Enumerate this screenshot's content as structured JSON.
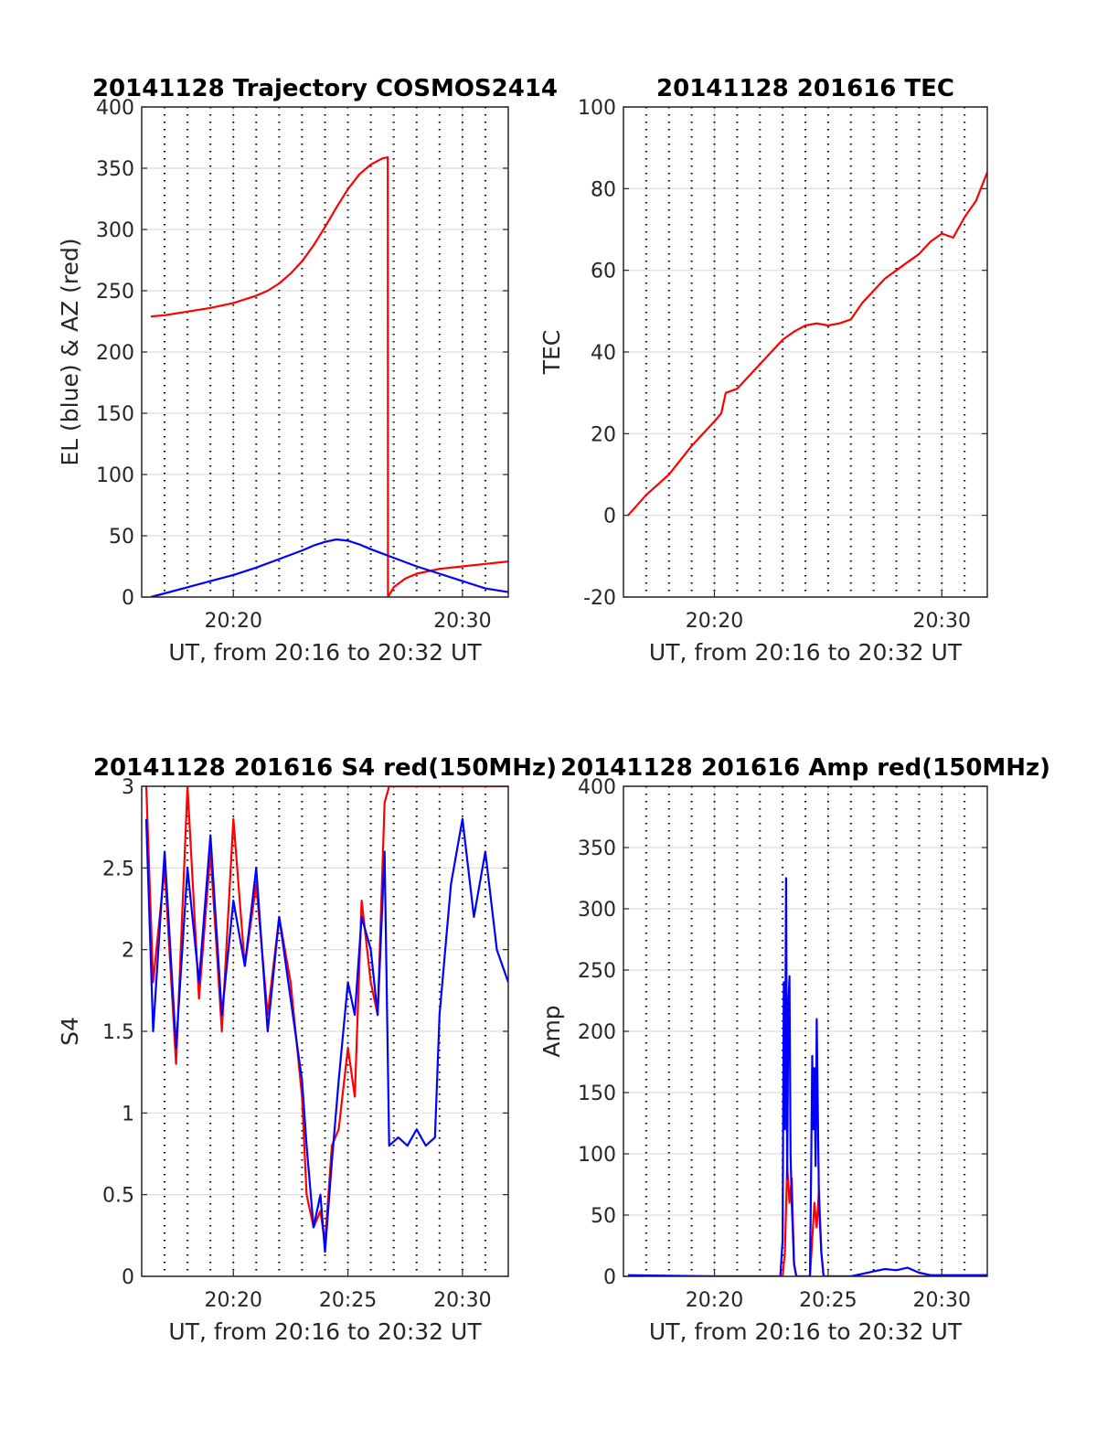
{
  "chart_data": [
    {
      "type": "line",
      "title": "20141128 Trajectory COSMOS2414",
      "xlabel": "UT, from 20:16 to 20:32 UT",
      "ylabel": "EL (blue) & AZ (red)",
      "xlim": [
        16,
        32
      ],
      "ylim": [
        0,
        400
      ],
      "xticks": [
        20,
        30
      ],
      "xtick_labels": [
        "20:20",
        "20:30"
      ],
      "yticks": [
        0,
        50,
        100,
        150,
        200,
        250,
        300,
        350,
        400
      ],
      "ytick_labels": [
        "0",
        "50",
        "100",
        "150",
        "200",
        "250",
        "300",
        "350",
        "400"
      ],
      "grid": true,
      "series": [
        {
          "color": "#ff0000",
          "x": [
            16.4,
            17,
            18,
            19,
            20,
            21,
            21.5,
            22,
            22.5,
            23,
            23.5,
            24,
            24.5,
            25,
            25.5,
            26,
            26.5,
            26.74,
            26.75,
            27,
            27.5,
            28,
            29,
            30,
            31,
            32
          ],
          "y": [
            229,
            230,
            233,
            236,
            240,
            246,
            250,
            256,
            264,
            274,
            287,
            302,
            318,
            333,
            345,
            353,
            358,
            359,
            0,
            8,
            15,
            19,
            23,
            25,
            27,
            29
          ]
        },
        {
          "color": "#0000ff",
          "x": [
            16.4,
            17,
            18,
            19,
            20,
            21,
            22,
            23,
            23.5,
            24,
            24.5,
            25,
            25.5,
            26,
            27,
            28,
            29,
            30,
            31,
            32
          ],
          "y": [
            0,
            3,
            8,
            13,
            18,
            24,
            31,
            38,
            42,
            45,
            47,
            46,
            43,
            39,
            32,
            25,
            19,
            13,
            7,
            4
          ]
        }
      ]
    },
    {
      "type": "line",
      "title": "20141128 201616 TEC",
      "xlabel": "UT, from 20:16 to 20:32 UT",
      "ylabel": "TEC",
      "xlim": [
        16,
        32
      ],
      "ylim": [
        -20,
        100
      ],
      "xticks": [
        20,
        30
      ],
      "xtick_labels": [
        "20:20",
        "20:30"
      ],
      "yticks": [
        -20,
        0,
        20,
        40,
        60,
        80,
        100
      ],
      "ytick_labels": [
        "-20",
        "0",
        "20",
        "40",
        "60",
        "80",
        "100"
      ],
      "grid": true,
      "series": [
        {
          "color": "#ff0000",
          "x": [
            16.2,
            17,
            18,
            19,
            20,
            20.3,
            20.5,
            21,
            21.5,
            22,
            22.5,
            23,
            23.5,
            24,
            24.5,
            25,
            25.5,
            26,
            26.5,
            27,
            27.5,
            28,
            28.5,
            29,
            29.5,
            30,
            30.5,
            31,
            31.5,
            32
          ],
          "y": [
            0,
            5,
            10,
            17,
            23,
            25,
            30,
            31,
            34,
            37,
            40,
            43,
            45,
            46.5,
            47,
            46.5,
            47,
            48,
            52,
            55,
            58,
            60,
            62,
            64,
            67,
            69,
            68,
            73,
            77,
            84
          ]
        }
      ]
    },
    {
      "type": "line",
      "title": "20141128 201616 S4 red(150MHz)",
      "xlabel": "UT, from 20:16 to 20:32 UT",
      "ylabel": "S4",
      "xlim": [
        16,
        32
      ],
      "ylim": [
        0,
        3
      ],
      "xticks": [
        20,
        25,
        30
      ],
      "xtick_labels": [
        "20:20",
        "20:25",
        "20:30"
      ],
      "yticks": [
        0,
        0.5,
        1,
        1.5,
        2,
        2.5,
        3
      ],
      "ytick_labels": [
        "0",
        "0.5",
        "1",
        "1.5",
        "2",
        "2.5",
        "3"
      ],
      "grid": true,
      "series": [
        {
          "color": "#ff0000",
          "x": [
            16.2,
            16.5,
            17,
            17.5,
            18,
            18.5,
            19,
            19.5,
            20,
            20.5,
            21,
            21.5,
            22,
            22.5,
            23,
            23.2,
            23.5,
            23.8,
            24,
            24.3,
            24.6,
            25,
            25.3,
            25.6,
            26,
            26.3,
            26.6,
            26.8,
            27.5,
            28,
            28.5,
            29,
            29.5,
            30,
            30.5,
            31,
            31.5,
            32
          ],
          "y": [
            3,
            1.8,
            2.5,
            1.3,
            3,
            1.7,
            2.6,
            1.5,
            2.8,
            1.9,
            2.4,
            1.6,
            2.2,
            1.8,
            1.1,
            0.5,
            0.3,
            0.4,
            0.2,
            0.8,
            0.9,
            1.4,
            1.1,
            2.3,
            1.8,
            1.6,
            2.9,
            3,
            3,
            3,
            3,
            3,
            3,
            3,
            3,
            3,
            3,
            3
          ]
        },
        {
          "color": "#0000ff",
          "x": [
            16.2,
            16.5,
            17,
            17.5,
            18,
            18.5,
            19,
            19.5,
            20,
            20.5,
            21,
            21.5,
            22,
            22.5,
            23,
            23.2,
            23.5,
            23.8,
            24,
            24.3,
            24.6,
            25,
            25.3,
            25.6,
            26,
            26.3,
            26.6,
            26.8,
            27.2,
            27.6,
            28,
            28.4,
            28.8,
            29,
            29.5,
            30,
            30.5,
            31,
            31.5,
            32
          ],
          "y": [
            2.8,
            1.5,
            2.6,
            1.4,
            2.5,
            1.8,
            2.7,
            1.6,
            2.3,
            1.9,
            2.5,
            1.5,
            2.2,
            1.7,
            1.2,
            0.8,
            0.3,
            0.5,
            0.15,
            0.7,
            1.2,
            1.8,
            1.6,
            2.2,
            2.0,
            1.6,
            2.6,
            0.8,
            0.85,
            0.8,
            0.9,
            0.8,
            0.85,
            1.6,
            2.4,
            2.8,
            2.2,
            2.6,
            2.0,
            1.8
          ]
        }
      ]
    },
    {
      "type": "line",
      "title": "20141128 201616 Amp red(150MHz)",
      "xlabel": "UT, from 20:16 to 20:32 UT",
      "ylabel": "Amp",
      "xlim": [
        16,
        32
      ],
      "ylim": [
        0,
        400
      ],
      "xticks": [
        20,
        25,
        30
      ],
      "xtick_labels": [
        "20:20",
        "20:25",
        "20:30"
      ],
      "yticks": [
        0,
        50,
        100,
        150,
        200,
        250,
        300,
        350,
        400
      ],
      "ytick_labels": [
        "0",
        "50",
        "100",
        "150",
        "200",
        "250",
        "300",
        "350",
        "400"
      ],
      "grid": true,
      "series": [
        {
          "color": "#ff0000",
          "x": [
            16.2,
            23.0,
            23.1,
            23.2,
            23.3,
            23.4,
            23.5,
            23.6,
            24.2,
            24.3,
            24.4,
            24.5,
            24.6,
            24.7,
            24.8,
            32
          ],
          "y": [
            0,
            0,
            20,
            90,
            60,
            80,
            10,
            0,
            0,
            30,
            60,
            40,
            70,
            20,
            0,
            0
          ]
        },
        {
          "color": "#0000ff",
          "x": [
            16.2,
            20,
            22.9,
            23.0,
            23.05,
            23.1,
            23.15,
            23.2,
            23.25,
            23.3,
            23.35,
            23.4,
            23.5,
            23.6,
            24.2,
            24.25,
            24.3,
            24.35,
            24.4,
            24.45,
            24.5,
            24.55,
            24.6,
            24.7,
            24.8,
            26,
            26.5,
            27,
            27.5,
            28,
            28.5,
            29,
            29.5,
            32
          ],
          "y": [
            1,
            0,
            0,
            30,
            240,
            120,
            325,
            80,
            220,
            245,
            100,
            60,
            10,
            0,
            0,
            80,
            180,
            120,
            170,
            90,
            210,
            130,
            60,
            20,
            0,
            0,
            2,
            4,
            6,
            5,
            7,
            3,
            1,
            1
          ]
        }
      ]
    }
  ]
}
